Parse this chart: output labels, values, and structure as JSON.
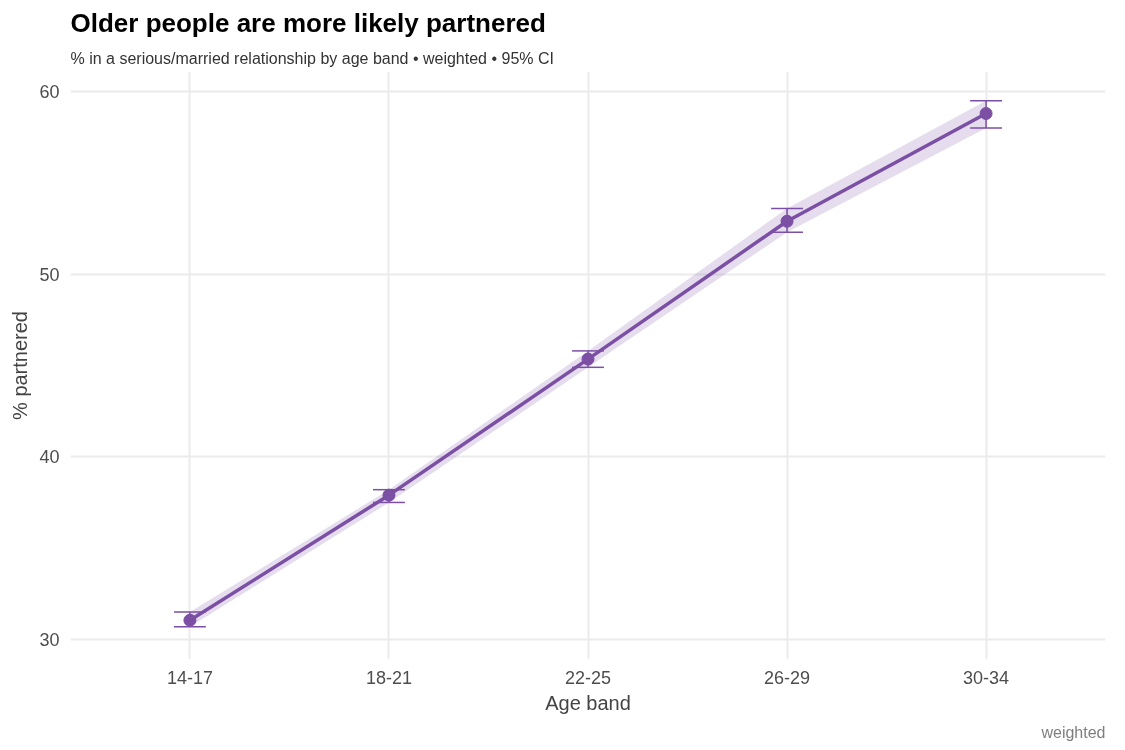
{
  "chart_data": {
    "type": "line",
    "title": "Older people are more likely partnered",
    "subtitle": "% in a serious/married relationship by age band  •  weighted  •  95% CI",
    "xlabel": "Age band",
    "ylabel": "% partnered",
    "annotations": [
      "weighted"
    ],
    "categories": [
      "14-17",
      "18-21",
      "22-25",
      "26-29",
      "30-34"
    ],
    "series": [
      {
        "color": "#7b4fa3",
        "values": [
          31.05,
          37.9,
          45.35,
          52.9,
          58.8
        ],
        "errors": [
          [
            30.7,
            31.5
          ],
          [
            37.5,
            38.2
          ],
          [
            44.9,
            45.8
          ],
          [
            52.3,
            53.6
          ],
          [
            58.0,
            59.5
          ]
        ],
        "lower": [
          30.7,
          37.5,
          44.9,
          52.3,
          58.0
        ],
        "upper": [
          31.5,
          38.2,
          45.8,
          53.6,
          59.5
        ]
      }
    ],
    "ylim": [
      28.9,
      61.1
    ],
    "yticks": [
      30,
      40,
      50,
      60
    ],
    "grid": true,
    "marker": "circle",
    "line_style": "solid"
  }
}
